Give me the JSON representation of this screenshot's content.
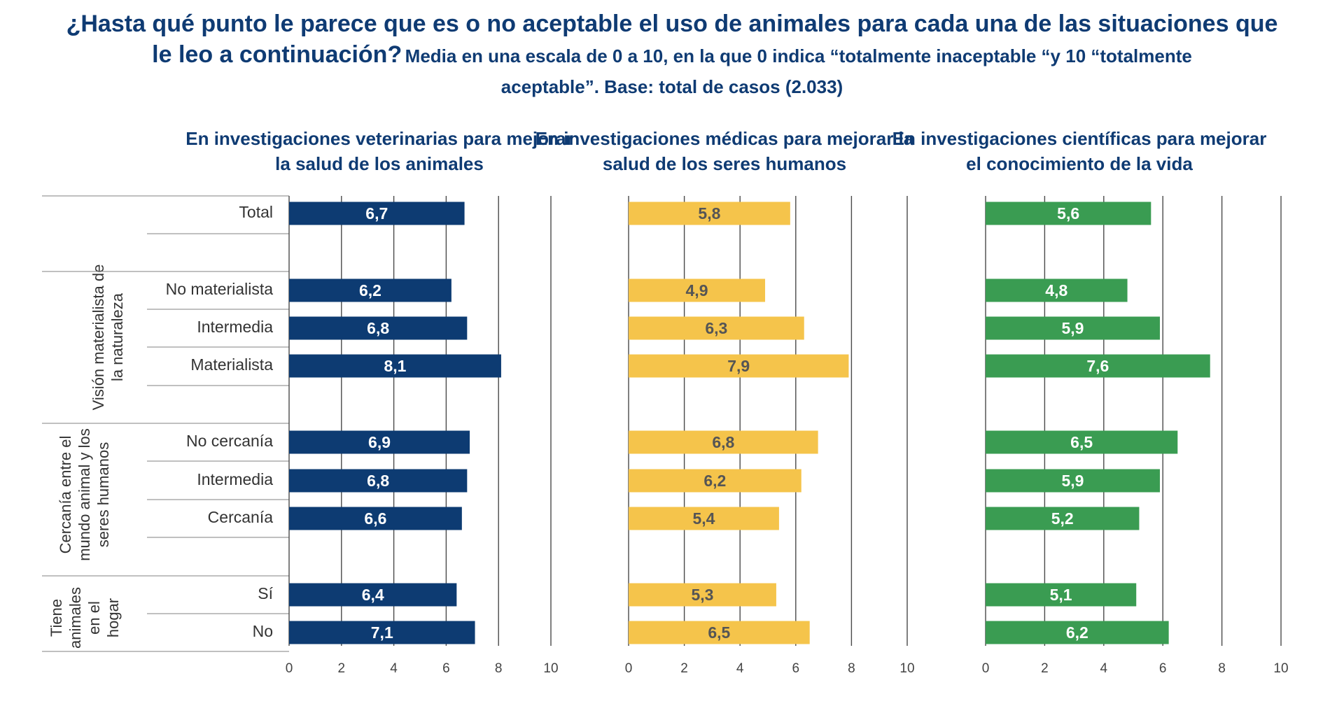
{
  "header": {
    "title_line1": "¿Hasta qué punto le parece que es o no aceptable el uso de animales para cada una de las situaciones que",
    "title_line2": "le leo a continuación?",
    "subtitle_part1": "Media en una escala de 0 a 10,  en la que 0 indica “totalmente inaceptable “y 10 “totalmente",
    "subtitle_part2": "aceptable”. Base: total de casos (2.033)"
  },
  "rows": {
    "total": "Total",
    "no_materialista": "No materialista",
    "intermedia_1": "Intermedia",
    "materialista": "Materialista",
    "no_cercania": "No cercanía",
    "intermedia_2": "Intermedia",
    "cercania": "Cercanía",
    "si": "Sí",
    "no": "No"
  },
  "groups": {
    "vision": "Visión materialista de la naturaleza",
    "cercania": "Cercanía entre el mundo animal y los seres humanos",
    "animales": "Tiene animales en el hogar"
  },
  "colors": {
    "title": "#0f3b73",
    "panel1": "#0d3b72",
    "panel2": "#f5c44b",
    "panel3": "#3a9c52",
    "label_light": "#ffffff",
    "label_dark": "#555555"
  },
  "chart_data": [
    {
      "type": "bar",
      "orientation": "horizontal",
      "title": "En investigaciones veterinarias para mejorar la salud de los animales",
      "categories": [
        "Total",
        "No materialista",
        "Intermedia",
        "Materialista",
        "No cercanía",
        "Intermedia",
        "Cercanía",
        "Sí",
        "No"
      ],
      "values": [
        6.7,
        6.2,
        6.8,
        8.1,
        6.9,
        6.8,
        6.6,
        6.4,
        7.1
      ],
      "value_labels": [
        "6,7",
        "6,2",
        "6,8",
        "8,1",
        "6,9",
        "6,8",
        "6,6",
        "6,4",
        "7,1"
      ],
      "xlim": [
        0,
        10
      ],
      "xticks": [
        "0",
        "2",
        "4",
        "6",
        "8",
        "10"
      ],
      "grid": true
    },
    {
      "type": "bar",
      "orientation": "horizontal",
      "title": "En investigaciones médicas para mejorar la salud de los seres humanos",
      "categories": [
        "Total",
        "No materialista",
        "Intermedia",
        "Materialista",
        "No cercanía",
        "Intermedia",
        "Cercanía",
        "Sí",
        "No"
      ],
      "values": [
        5.8,
        4.9,
        6.3,
        7.9,
        6.8,
        6.2,
        5.4,
        5.3,
        6.5
      ],
      "value_labels": [
        "5,8",
        "4,9",
        "6,3",
        "7,9",
        "6,8",
        "6,2",
        "5,4",
        "5,3",
        "6,5"
      ],
      "xlim": [
        0,
        10
      ],
      "xticks": [
        "0",
        "2",
        "4",
        "6",
        "8",
        "10"
      ],
      "grid": true
    },
    {
      "type": "bar",
      "orientation": "horizontal",
      "title": "En investigaciones científicas para mejorar el conocimiento de la vida",
      "categories": [
        "Total",
        "No materialista",
        "Intermedia",
        "Materialista",
        "No cercanía",
        "Intermedia",
        "Cercanía",
        "Sí",
        "No"
      ],
      "values": [
        5.6,
        4.8,
        5.9,
        7.6,
        6.5,
        5.9,
        5.2,
        5.1,
        6.2
      ],
      "value_labels": [
        "5,6",
        "4,8",
        "5,9",
        "7,6",
        "6,5",
        "5,9",
        "5,2",
        "5,1",
        "6,2"
      ],
      "xlim": [
        0,
        10
      ],
      "xticks": [
        "0",
        "2",
        "4",
        "6",
        "8",
        "10"
      ],
      "grid": true
    }
  ]
}
